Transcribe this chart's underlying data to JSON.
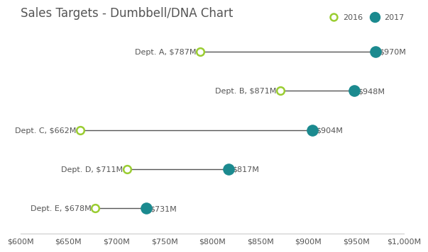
{
  "title": "Sales Targets - Dumbbell/DNA Chart",
  "departments": [
    "Dept. A",
    "Dept. B",
    "Dept. C",
    "Dept. D",
    "Dept. E"
  ],
  "values_2016": [
    787,
    871,
    662,
    711,
    678
  ],
  "values_2017": [
    970,
    948,
    904,
    817,
    731
  ],
  "labels_2016": [
    "$787M",
    "$871M",
    "$662M",
    "$711M",
    "$678M"
  ],
  "labels_2017": [
    "$970M",
    "$948M",
    "$904M",
    "$817M",
    "$731M"
  ],
  "color_2016": "#9ACD32",
  "color_2017": "#1B8A8F",
  "line_color": "#555555",
  "background_color": "#FFFFFF",
  "xlim": [
    600,
    1000
  ],
  "xticks": [
    600,
    650,
    700,
    750,
    800,
    850,
    900,
    950,
    1000
  ],
  "xtick_labels": [
    "$600M",
    "$650M",
    "$700M",
    "$750M",
    "$800M",
    "$850M",
    "$900M",
    "$950M",
    "$1,000M"
  ],
  "dot_size_2016": 60,
  "dot_size_2017": 120,
  "legend_2016": "2016",
  "legend_2017": "2017",
  "title_fontsize": 12,
  "tick_fontsize": 8,
  "label_fontsize": 8,
  "dept_label_fontsize": 8,
  "text_color": "#555555",
  "spine_color": "#CCCCCC"
}
